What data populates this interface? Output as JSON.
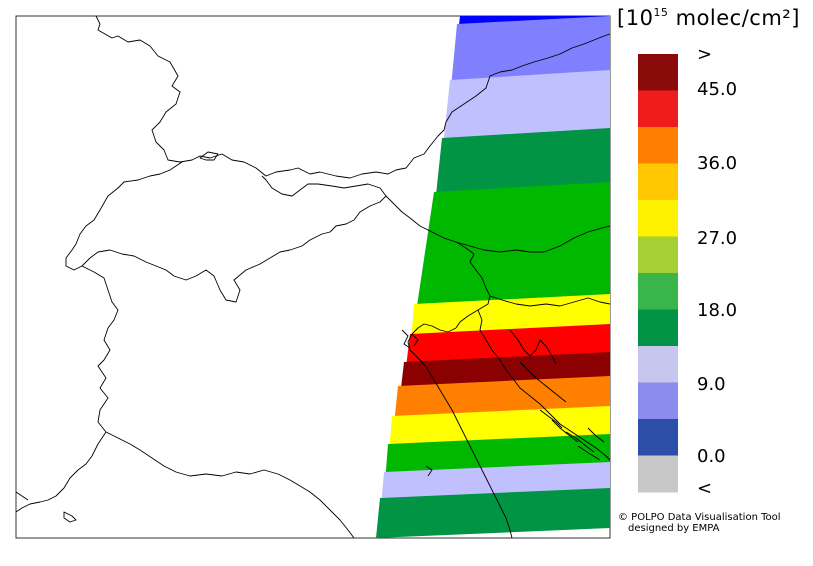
{
  "legend": {
    "unit_prefix": "10",
    "unit_exponent": "15",
    "unit_suffix": " molec/cm²",
    "above_marker": ">",
    "below_marker": "<",
    "tick_labels": [
      "45.0",
      "36.0",
      "27.0",
      "18.0",
      "9.0",
      "0.0"
    ],
    "colors": [
      "#8b0a0a",
      "#ee1c1c",
      "#ff7f00",
      "#ffc800",
      "#fff200",
      "#a6cf35",
      "#39b54a",
      "#009444",
      "#c6c6ee",
      "#8c8cee",
      "#2c4ea8",
      "#c8c8c8"
    ]
  },
  "credit": {
    "line1": "© POLPO Data Visualisation Tool",
    "line2": "designed by EMPA"
  },
  "swath": {
    "colors": {
      "dark_blue": "#0000ff",
      "medium_blue": "#8080ff",
      "light_blue": "#c0c0ff",
      "dark_green": "#009444",
      "green": "#00b800",
      "yellow": "#ffff00",
      "red": "#ff0000",
      "dark_red": "#8b0000",
      "orange": "#ff8000"
    }
  }
}
